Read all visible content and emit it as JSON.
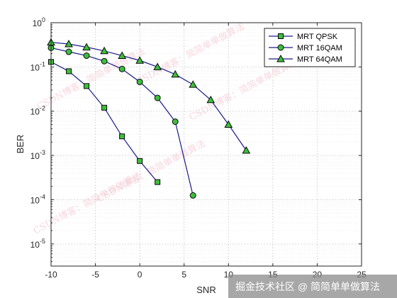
{
  "chart_data": {
    "type": "line",
    "xlabel": "SNR",
    "ylabel": "BER",
    "xlim": [
      -10,
      25
    ],
    "ylim_log10": [
      -5.5,
      0
    ],
    "y_scale": "log",
    "grid": true,
    "minor_grid": true,
    "legend_position": "top-right",
    "x_ticks": [
      -10,
      -5,
      0,
      5,
      10,
      15,
      20,
      25
    ],
    "x_tick_labels": [
      "-10",
      "-5",
      "0",
      "5",
      "10",
      "15",
      "20",
      "25"
    ],
    "y_ticks": [
      1e-05,
      0.0001,
      0.001,
      0.01,
      0.1,
      1
    ],
    "y_tick_labels": [
      {
        "base": "10",
        "exp": "-5"
      },
      {
        "base": "10",
        "exp": "-4"
      },
      {
        "base": "10",
        "exp": "-3"
      },
      {
        "base": "10",
        "exp": "-2"
      },
      {
        "base": "10",
        "exp": "-1"
      },
      {
        "base": "10",
        "exp": "0"
      }
    ],
    "series": [
      {
        "name": "MRT QPSK",
        "marker": "square",
        "color": "#1a1a8c",
        "marker_fill": "#3dbf3d",
        "x": [
          -10,
          -8,
          -6,
          -4,
          -2,
          0,
          2
        ],
        "y": [
          0.13,
          0.08,
          0.037,
          0.012,
          0.0027,
          0.00075,
          0.00025
        ]
      },
      {
        "name": "MRT 16QAM",
        "marker": "circle",
        "color": "#1a1a8c",
        "marker_fill": "#3dbf3d",
        "x": [
          -10,
          -8,
          -6,
          -4,
          -2,
          0,
          2,
          4,
          6
        ],
        "y": [
          0.27,
          0.22,
          0.18,
          0.135,
          0.09,
          0.046,
          0.02,
          0.0058,
          0.000125
        ]
      },
      {
        "name": "MRT 64QAM",
        "marker": "triangle",
        "color": "#1a1a8c",
        "marker_fill": "#3dbf3d",
        "x": [
          -10,
          -8,
          -6,
          -4,
          -2,
          0,
          2,
          4,
          6,
          8,
          10,
          12
        ],
        "y": [
          0.36,
          0.33,
          0.28,
          0.23,
          0.18,
          0.14,
          0.1,
          0.068,
          0.04,
          0.018,
          0.005,
          0.0013
        ]
      }
    ]
  },
  "watermarks": [
    "CSDN博客：简简单单做算法",
    "CSDN博客：简简单单做算法",
    "CSDN博客：简简单单做算法",
    "CSDN博客：简简单单做算法",
    "CSDN博客：简简单单做算法"
  ],
  "credit": "掘金技术社区 @ 简简单单做算法",
  "colors": {
    "axes": "#262626",
    "grid_major": "#d9d9d9",
    "grid_minor": "#ececec",
    "watermark": "#f2b8c6"
  }
}
